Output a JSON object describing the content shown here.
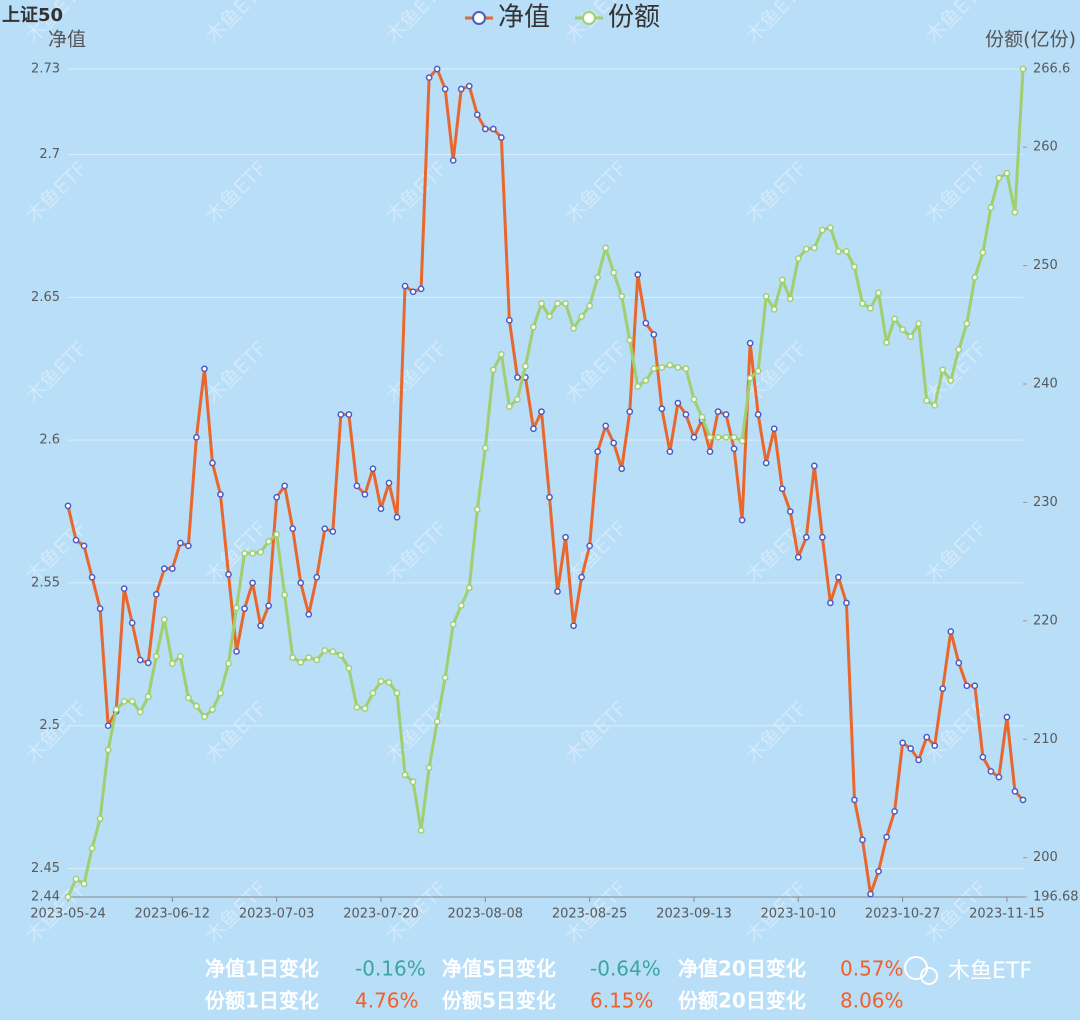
{
  "chart_data": {
    "type": "line",
    "title": "上证50",
    "ylabel": "净值",
    "y2label": "份额(亿份)",
    "categories": [
      "2023-05-24",
      null,
      null,
      null,
      null,
      null,
      null,
      null,
      null,
      null,
      null,
      null,
      null,
      "2023-06-12",
      null,
      null,
      null,
      null,
      null,
      null,
      null,
      null,
      null,
      null,
      null,
      null,
      "2023-07-03",
      null,
      null,
      null,
      null,
      null,
      null,
      null,
      null,
      null,
      null,
      null,
      null,
      "2023-07-20",
      null,
      null,
      null,
      null,
      null,
      null,
      null,
      null,
      null,
      null,
      null,
      null,
      "2023-08-08",
      null,
      null,
      null,
      null,
      null,
      null,
      null,
      null,
      null,
      null,
      null,
      null,
      "2023-08-25",
      null,
      null,
      null,
      null,
      null,
      null,
      null,
      null,
      null,
      null,
      null,
      null,
      "2023-09-13",
      null,
      null,
      null,
      null,
      null,
      null,
      null,
      null,
      null,
      null,
      null,
      null,
      "2023-10-10",
      null,
      null,
      null,
      null,
      null,
      null,
      null,
      null,
      null,
      null,
      null,
      null,
      "2023-10-27",
      null,
      null,
      null,
      null,
      null,
      null,
      null,
      null,
      null,
      null,
      null,
      null,
      "2023-11-15",
      null,
      null
    ],
    "series": [
      {
        "name": "净值",
        "color": "#e8672e",
        "marker_color": "#4a5cc4",
        "values": [
          2.577,
          2.565,
          2.563,
          2.552,
          2.541,
          2.5,
          2.505,
          2.548,
          2.536,
          2.523,
          2.522,
          2.546,
          2.555,
          2.555,
          2.564,
          2.563,
          2.601,
          2.625,
          2.592,
          2.581,
          2.553,
          2.526,
          2.541,
          2.55,
          2.535,
          2.542,
          2.58,
          2.584,
          2.569,
          2.55,
          2.539,
          2.552,
          2.569,
          2.568,
          2.609,
          2.609,
          2.584,
          2.581,
          2.59,
          2.576,
          2.585,
          2.573,
          2.654,
          2.652,
          2.653,
          2.727,
          2.73,
          2.723,
          2.698,
          2.723,
          2.724,
          2.714,
          2.709,
          2.709,
          2.706,
          2.642,
          2.622,
          2.622,
          2.604,
          2.61,
          2.58,
          2.547,
          2.566,
          2.535,
          2.552,
          2.563,
          2.596,
          2.605,
          2.599,
          2.59,
          2.61,
          2.658,
          2.641,
          2.637,
          2.611,
          2.596,
          2.613,
          2.609,
          2.601,
          2.607,
          2.596,
          2.61,
          2.609,
          2.597,
          2.572,
          2.634,
          2.609,
          2.592,
          2.604,
          2.583,
          2.575,
          2.559,
          2.566,
          2.591,
          2.566,
          2.543,
          2.552,
          2.543,
          2.474,
          2.46,
          2.441,
          2.449,
          2.461,
          2.47,
          2.494,
          2.492,
          2.488,
          2.496,
          2.493,
          2.513,
          2.533,
          2.522,
          2.514,
          2.514,
          2.489,
          2.484,
          2.482,
          2.503,
          2.477,
          2.474
        ]
      },
      {
        "name": "份额",
        "color": "#9fcf6f",
        "marker_color": "#9fcf6f",
        "axis": "y2",
        "values": [
          196.68,
          198.2,
          197.8,
          200.8,
          203.3,
          209.1,
          212.5,
          213.2,
          213.2,
          212.3,
          213.6,
          217.0,
          220.1,
          216.4,
          217.0,
          213.5,
          212.8,
          211.9,
          212.5,
          213.9,
          216.4,
          221.1,
          225.7,
          225.7,
          225.8,
          226.7,
          227.3,
          222.2,
          216.9,
          216.5,
          216.9,
          216.7,
          217.5,
          217.4,
          217.1,
          216.0,
          212.7,
          212.6,
          213.9,
          214.9,
          214.8,
          213.9,
          207.0,
          206.4,
          202.3,
          207.6,
          211.5,
          215.2,
          219.7,
          221.3,
          222.8,
          229.4,
          234.6,
          241.2,
          242.5,
          238.1,
          238.7,
          241.5,
          244.8,
          246.8,
          245.7,
          246.8,
          246.8,
          244.7,
          245.7,
          246.6,
          249.0,
          251.5,
          249.4,
          247.4,
          243.7,
          239.8,
          240.3,
          241.3,
          241.4,
          241.6,
          241.4,
          241.3,
          238.7,
          237.2,
          235.5,
          235.5,
          235.5,
          235.5,
          235.2,
          240.5,
          241.1,
          247.4,
          246.3,
          248.8,
          247.2,
          250.6,
          251.4,
          251.5,
          253.0,
          253.2,
          251.2,
          251.2,
          249.9,
          246.8,
          246.4,
          247.7,
          243.5,
          245.5,
          244.6,
          244.0,
          245.1,
          238.6,
          238.2,
          241.2,
          240.3,
          242.9,
          245.1,
          249.0,
          251.1,
          254.9,
          257.4,
          257.8,
          254.5,
          266.6
        ]
      }
    ],
    "ylim": [
      2.44,
      2.73
    ],
    "yticks": [
      2.44,
      2.45,
      2.5,
      2.55,
      2.6,
      2.65,
      2.7,
      2.73
    ],
    "y2lim": [
      196.68,
      266.6
    ],
    "y2ticks": [
      196.68,
      200,
      210,
      220,
      230,
      240,
      250,
      260,
      266.6
    ],
    "grid": true,
    "legend": "top",
    "watermark": "木鱼ETF",
    "brand": "木鱼ETF",
    "stats": [
      [
        {
          "label": "净值1日变化",
          "value": "-0.16%",
          "color": "#3aa6a0"
        },
        {
          "label": "净值5日变化",
          "value": "-0.64%",
          "color": "#3aa6a0"
        },
        {
          "label": "净值20日变化",
          "value": "0.57%",
          "color": "#f0602a"
        }
      ],
      [
        {
          "label": "份额1日变化",
          "value": "4.76%",
          "color": "#f0602a"
        },
        {
          "label": "份额5日变化",
          "value": "6.15%",
          "color": "#f0602a"
        },
        {
          "label": "份额20日变化",
          "value": "8.06%",
          "color": "#f0602a"
        }
      ]
    ]
  }
}
